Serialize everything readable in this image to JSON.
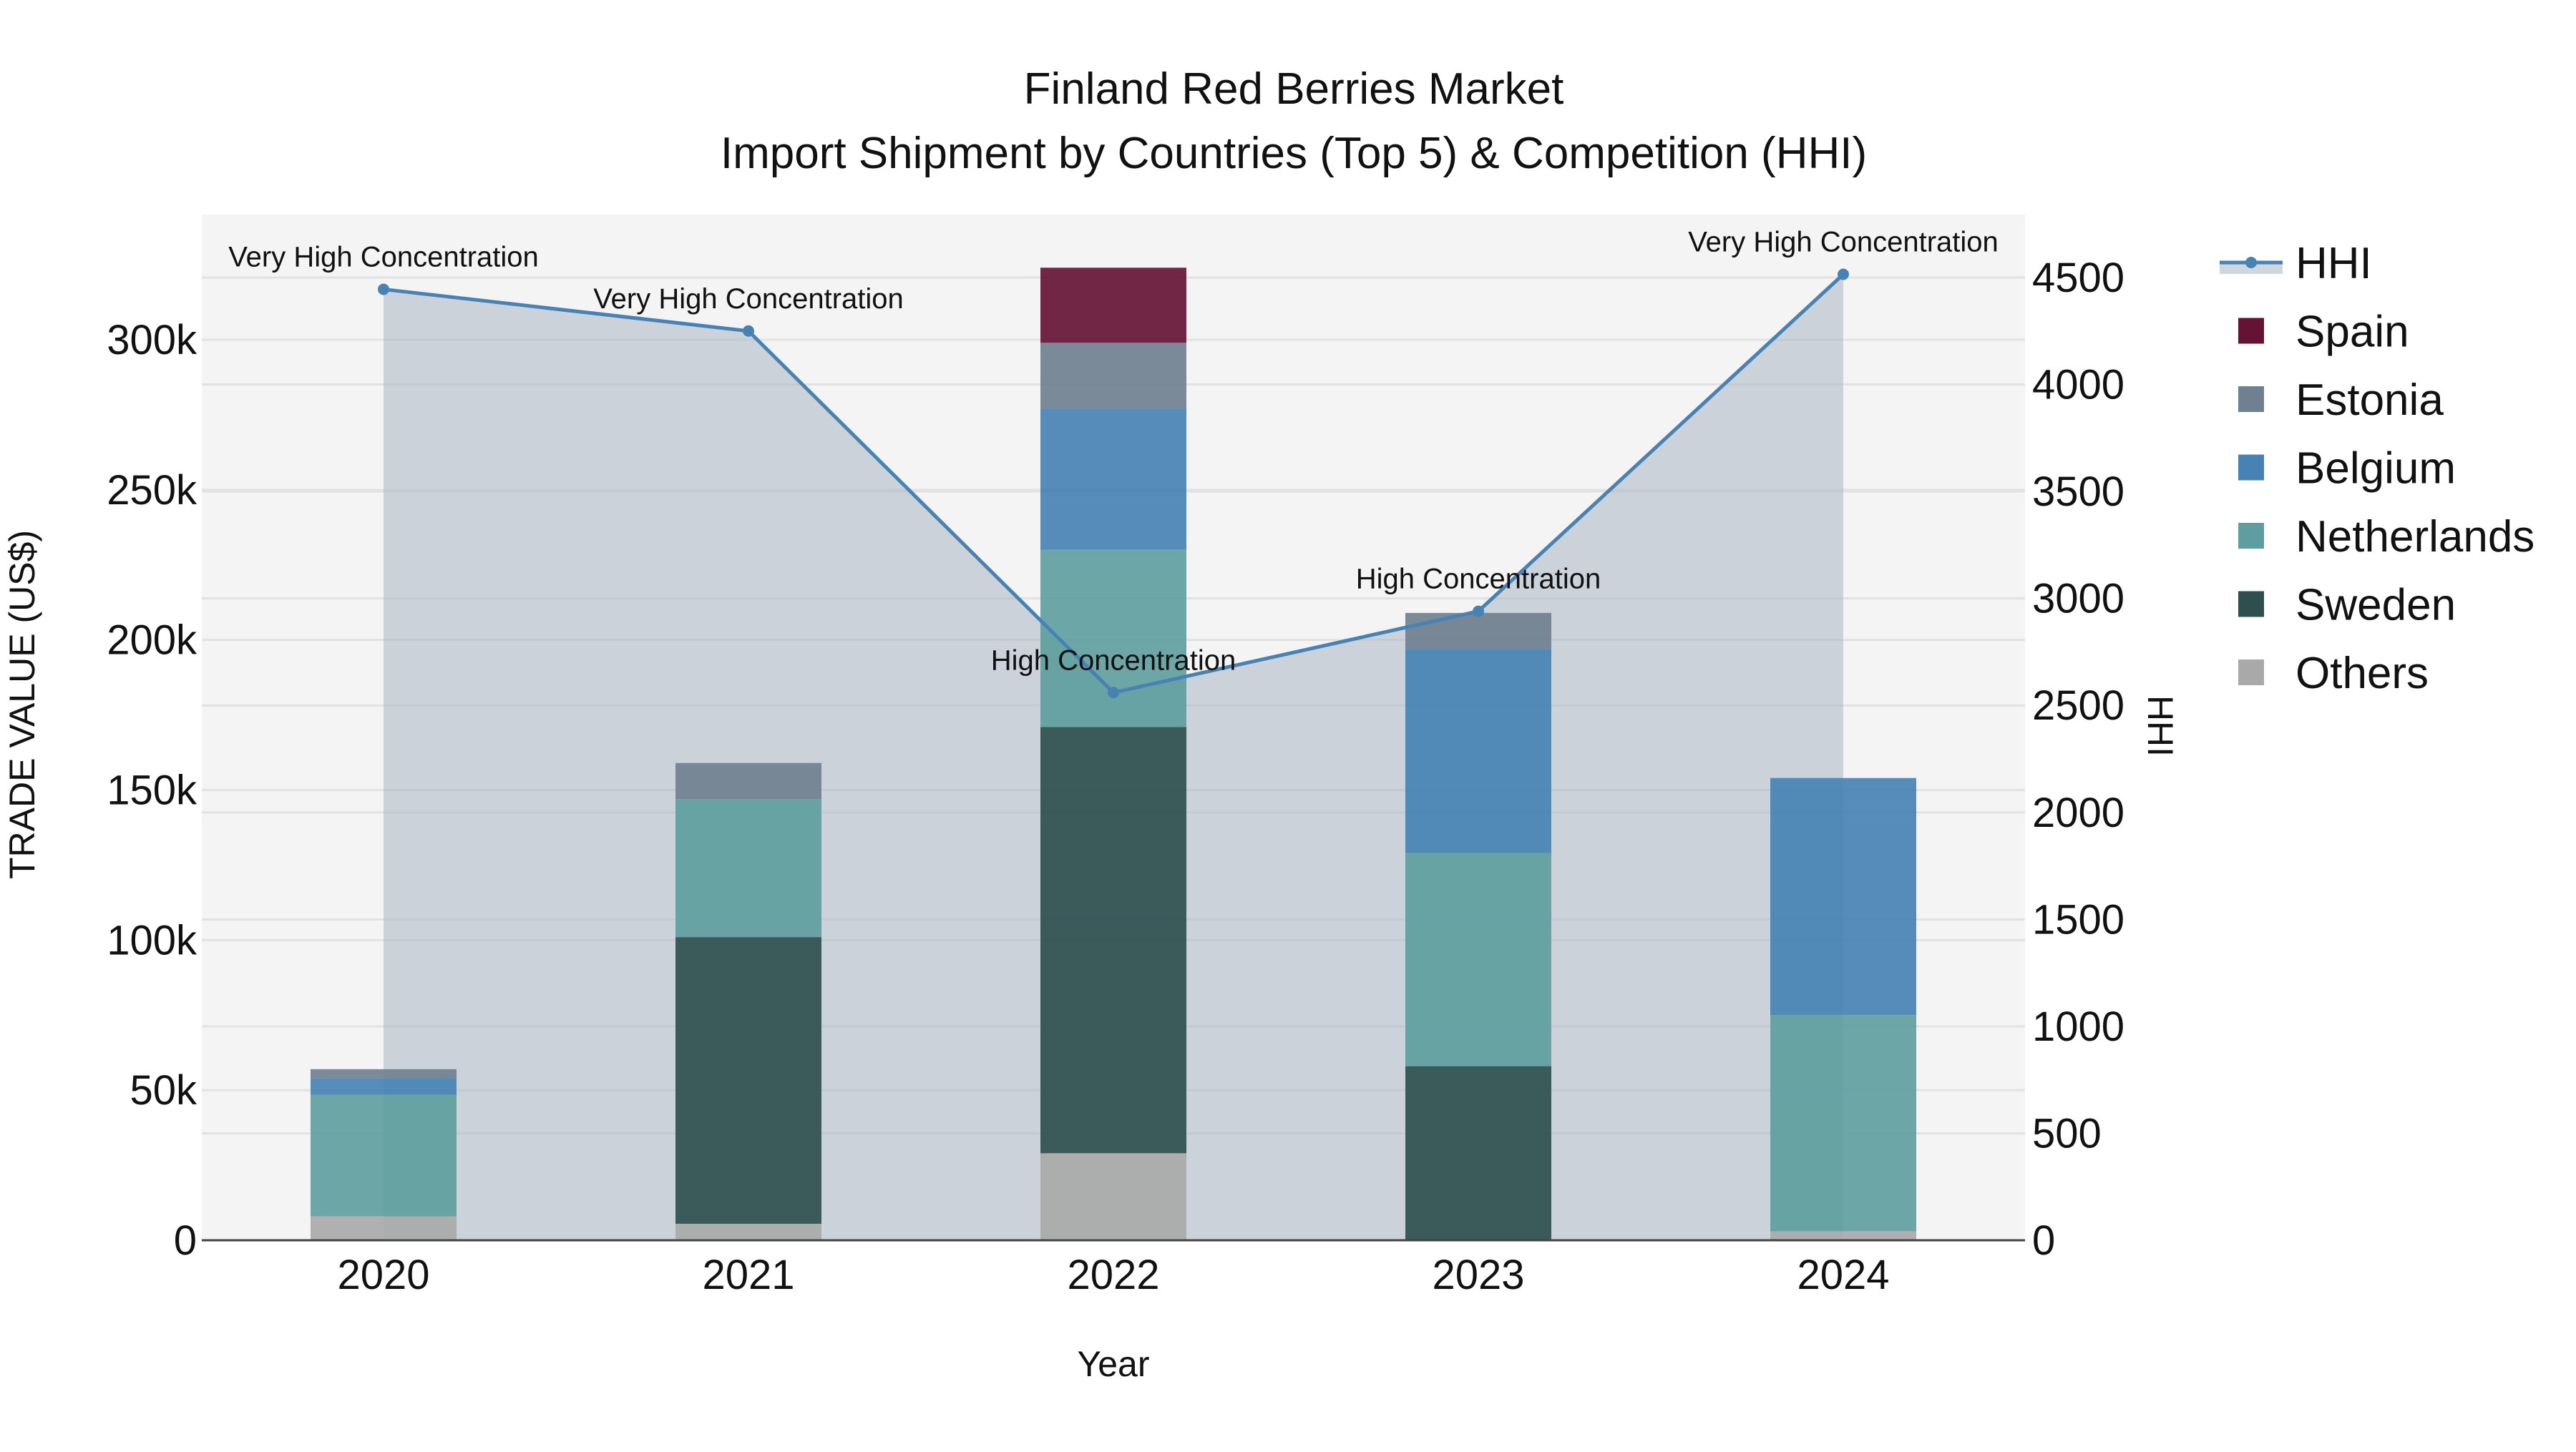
{
  "title": {
    "line1": "Finland Red Berries Market",
    "line2": "Import Shipment by Countries (Top 5) & Competition (HHI)"
  },
  "axes": {
    "xlabel": "Year",
    "ylabel_left": "TRADE VALUE (US$)",
    "ylabel_right": "HHI",
    "left_ticks": [
      "0",
      "50k",
      "100k",
      "150k",
      "200k",
      "250k",
      "300k"
    ],
    "right_ticks": [
      "0",
      "500",
      "1000",
      "1500",
      "2000",
      "2500",
      "3000",
      "3500",
      "4000",
      "4500"
    ]
  },
  "legend": {
    "items": [
      {
        "label": "HHI",
        "type": "line",
        "color": "#4682B4"
      },
      {
        "label": "Spain",
        "type": "box",
        "color": "#641334"
      },
      {
        "label": "Estonia",
        "type": "box",
        "color": "#708090"
      },
      {
        "label": "Belgium",
        "type": "box",
        "color": "#4682B4"
      },
      {
        "label": "Netherlands",
        "type": "box",
        "color": "#5F9EA0"
      },
      {
        "label": "Sweden",
        "type": "box",
        "color": "#2F4F4F"
      },
      {
        "label": "Others",
        "type": "box",
        "color": "#A9A9A9"
      }
    ]
  },
  "chart_data": {
    "type": "bar",
    "stacked": true,
    "title": "Finland Red Berries Market — Import Shipment by Countries (Top 5) & Competition (HHI)",
    "xlabel": "Year",
    "ylabel": "TRADE VALUE (US$)",
    "y2label": "HHI",
    "categories": [
      "2020",
      "2021",
      "2022",
      "2023",
      "2024"
    ],
    "ylim": [
      0,
      335000
    ],
    "y2lim": [
      0,
      4820
    ],
    "grid": true,
    "legend_position": "right",
    "series": [
      {
        "name": "Others",
        "color": "#A9A9A9",
        "values": [
          8000,
          5500,
          29000,
          0,
          3000
        ]
      },
      {
        "name": "Sweden",
        "color": "#2F4F4F",
        "values": [
          0,
          95500,
          142000,
          58000,
          0
        ]
      },
      {
        "name": "Netherlands",
        "color": "#5F9EA0",
        "values": [
          40500,
          46000,
          59000,
          71000,
          72000
        ]
      },
      {
        "name": "Belgium",
        "color": "#4682B4",
        "values": [
          5500,
          0,
          47000,
          68000,
          79000
        ]
      },
      {
        "name": "Estonia",
        "color": "#708090",
        "values": [
          3000,
          12000,
          22000,
          12000,
          0
        ]
      },
      {
        "name": "Spain",
        "color": "#641334",
        "values": [
          0,
          0,
          25000,
          0,
          0
        ]
      }
    ],
    "line_series": {
      "name": "HHI",
      "axis": "right",
      "color": "#4682B4",
      "fill": "tozeroy",
      "values": [
        4445,
        4250,
        2560,
        2940,
        4515
      ],
      "annotations": [
        "Very High Concentration",
        "Very High Concentration",
        "High Concentration",
        "High Concentration",
        "Very High Concentration"
      ]
    }
  }
}
